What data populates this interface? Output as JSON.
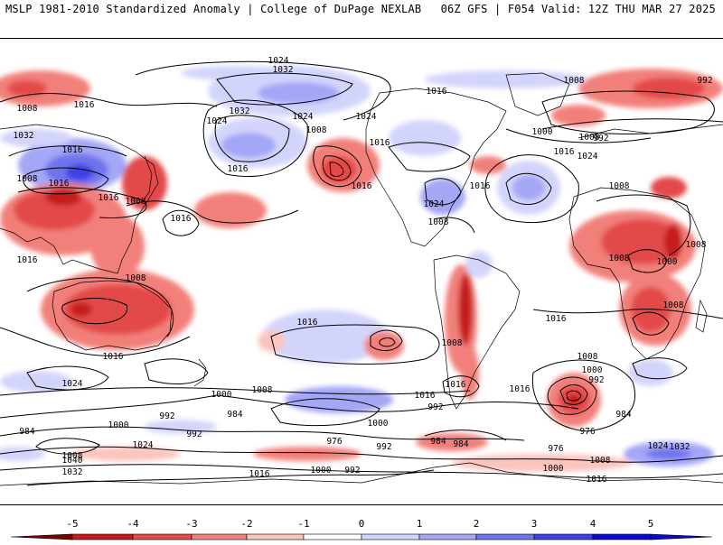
{
  "header": {
    "left": "MSLP 1981-2010 Standardized Anomaly | College of DuPage NEXLAB",
    "right": "06Z GFS | F054 Valid: 12Z THU MAR 27 2025"
  },
  "colors": {
    "neg5": "#7a0000",
    "neg4": "#c51b1b",
    "neg3": "#e34a4a",
    "neg2": "#f2807a",
    "neg1": "#fbc4bd",
    "zero": "#ffffff",
    "pos1": "#d3d4fb",
    "pos2": "#a4a6f6",
    "pos3": "#7073ec",
    "pos4": "#3d40e4",
    "pos5": "#0a0bd0",
    "land_outline": "#000000",
    "isobar": "#000000"
  },
  "colorbar": {
    "ticks": [
      "-5",
      "-4",
      "-3",
      "-2",
      "-1",
      "0",
      "1",
      "2",
      "3",
      "4",
      "5"
    ]
  },
  "isobar_labels": [
    "1024",
    "1032",
    "1016",
    "1008",
    "1016",
    "992",
    "1008",
    "1024",
    "1032",
    "1024",
    "1008",
    "1016",
    "1016",
    "1024",
    "1000",
    "992",
    "1016",
    "1008",
    "1032",
    "1016",
    "1024",
    "1008",
    "1016",
    "1008",
    "1016",
    "1016",
    "1024",
    "1016",
    "1008",
    "1016",
    "1008",
    "1008",
    "1008",
    "1008",
    "1000",
    "1016",
    "1016",
    "1016",
    "1008",
    "1024",
    "1008",
    "1016",
    "1016",
    "1008",
    "1000",
    "992",
    "984",
    "1016",
    "1000",
    "1008",
    "1016",
    "1000",
    "992",
    "984",
    "1000",
    "984",
    "992",
    "984",
    "976",
    "992",
    "976",
    "984",
    "992",
    "976",
    "1008",
    "1024",
    "1032",
    "1040",
    "1024",
    "1016",
    "1000",
    "992",
    "1032",
    "1008",
    "1000",
    "1016"
  ]
}
